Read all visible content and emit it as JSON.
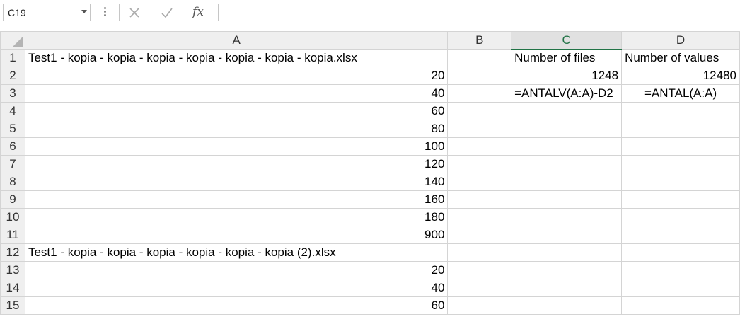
{
  "namebox": {
    "value": "C19"
  },
  "formula_bar": {
    "fx": "fx",
    "content": ""
  },
  "columns": [
    "A",
    "B",
    "C",
    "D"
  ],
  "selected_column": "C",
  "rows": [
    {
      "n": "1",
      "a": "Test1 - kopia - kopia - kopia - kopia - kopia - kopia - kopia.xlsx",
      "b": "",
      "c": "Number of files",
      "d": "Number of values"
    },
    {
      "n": "2",
      "a": "20",
      "b": "",
      "c": "1248",
      "d": "12480"
    },
    {
      "n": "3",
      "a": "40",
      "b": "",
      "c": "=ANTALV(A:A)-D2",
      "d": "=ANTAL(A:A)"
    },
    {
      "n": "4",
      "a": "60",
      "b": "",
      "c": "",
      "d": ""
    },
    {
      "n": "5",
      "a": "80",
      "b": "",
      "c": "",
      "d": ""
    },
    {
      "n": "6",
      "a": "100",
      "b": "",
      "c": "",
      "d": ""
    },
    {
      "n": "7",
      "a": "120",
      "b": "",
      "c": "",
      "d": ""
    },
    {
      "n": "8",
      "a": "140",
      "b": "",
      "c": "",
      "d": ""
    },
    {
      "n": "9",
      "a": "160",
      "b": "",
      "c": "",
      "d": ""
    },
    {
      "n": "10",
      "a": "180",
      "b": "",
      "c": "",
      "d": ""
    },
    {
      "n": "11",
      "a": "900",
      "b": "",
      "c": "",
      "d": ""
    },
    {
      "n": "12",
      "a": "Test1 - kopia - kopia - kopia - kopia - kopia - kopia (2).xlsx",
      "b": "",
      "c": "",
      "d": ""
    },
    {
      "n": "13",
      "a": "20",
      "b": "",
      "c": "",
      "d": ""
    },
    {
      "n": "14",
      "a": "40",
      "b": "",
      "c": "",
      "d": ""
    },
    {
      "n": "15",
      "a": "60",
      "b": "",
      "c": "",
      "d": ""
    }
  ]
}
